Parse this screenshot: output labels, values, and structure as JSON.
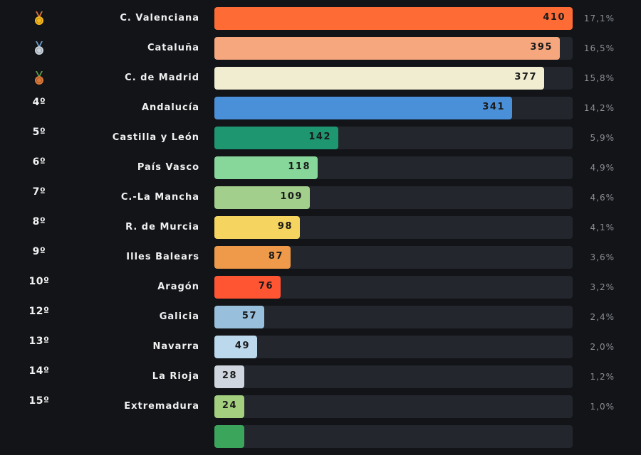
{
  "chart_data": {
    "type": "bar",
    "orientation": "horizontal",
    "max_value": 410,
    "rows": [
      {
        "rank": "",
        "medal": "gold-medal-icon",
        "name": "C. Valenciana",
        "value": 410,
        "pct": "17,1%",
        "color": "#ff6b35"
      },
      {
        "rank": "",
        "medal": "silver-medal-icon",
        "name": "Cataluña",
        "value": 395,
        "pct": "16,5%",
        "color": "#f7a77e"
      },
      {
        "rank": "",
        "medal": "bronze-medal-icon",
        "name": "C. de Madrid",
        "value": 377,
        "pct": "15,8%",
        "color": "#f0edd1"
      },
      {
        "rank": "4º",
        "medal": "",
        "name": "Andalucía",
        "value": 341,
        "pct": "14,2%",
        "color": "#4a90d9"
      },
      {
        "rank": "5º",
        "medal": "",
        "name": "Castilla y León",
        "value": 142,
        "pct": "5,9%",
        "color": "#1e9670"
      },
      {
        "rank": "6º",
        "medal": "",
        "name": "País Vasco",
        "value": 118,
        "pct": "4,9%",
        "color": "#87d69a"
      },
      {
        "rank": "7º",
        "medal": "",
        "name": "C.-La Mancha",
        "value": 109,
        "pct": "4,6%",
        "color": "#a3cf8c"
      },
      {
        "rank": "8º",
        "medal": "",
        "name": "R. de Murcia",
        "value": 98,
        "pct": "4,1%",
        "color": "#f5d45f"
      },
      {
        "rank": "9º",
        "medal": "",
        "name": "Illes Balears",
        "value": 87,
        "pct": "3,6%",
        "color": "#ef9a4a"
      },
      {
        "rank": "10º",
        "medal": "",
        "name": "Aragón",
        "value": 76,
        "pct": "3,2%",
        "color": "#ff5533"
      },
      {
        "rank": "12º",
        "medal": "",
        "name": "Galicia",
        "value": 57,
        "pct": "2,4%",
        "color": "#98c0dc"
      },
      {
        "rank": "13º",
        "medal": "",
        "name": "Navarra",
        "value": 49,
        "pct": "2,0%",
        "color": "#bcd8ec"
      },
      {
        "rank": "14º",
        "medal": "",
        "name": "La Rioja",
        "value": 28,
        "pct": "1,2%",
        "color": "#cfd6df"
      },
      {
        "rank": "15º",
        "medal": "",
        "name": "Extremadura",
        "value": 24,
        "pct": "1,0%",
        "color": "#a3cf7f"
      }
    ],
    "partial_next_bar_color": "#3ba55c"
  }
}
